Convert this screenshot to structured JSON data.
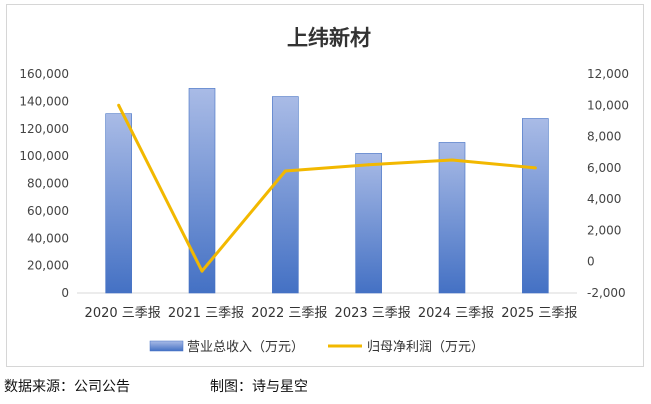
{
  "chart_data": {
    "type": "bar+line",
    "title": "上纬新材",
    "categories": [
      "2020 三季报",
      "2021 三季报",
      "2022 三季报",
      "2023 三季报",
      "2024 三季报",
      "2025 三季报"
    ],
    "series": [
      {
        "name": "营业总收入（万元）",
        "type": "bar",
        "axis": "left",
        "values": [
          131000,
          149500,
          143500,
          102000,
          110000,
          127500
        ]
      },
      {
        "name": "归母净利润（万元）",
        "type": "line",
        "axis": "right",
        "values": [
          10000,
          -600,
          5800,
          6200,
          6500,
          6000
        ]
      }
    ],
    "y_left": {
      "ylim": [
        0,
        160000
      ],
      "ticks": [
        "0",
        "20,000",
        "40,000",
        "60,000",
        "80,000",
        "100,000",
        "120,000",
        "140,000",
        "160,000"
      ]
    },
    "y_right": {
      "ylim": [
        -2000,
        12000
      ],
      "ticks": [
        "-2,000",
        "0",
        "2,000",
        "4,000",
        "6,000",
        "8,000",
        "10,000",
        "12,000"
      ]
    },
    "legend_position": "bottom",
    "grid": false,
    "colors": {
      "bar_top": "#a9bbe6",
      "bar_bottom": "#4471c4",
      "line": "#f2b800"
    }
  },
  "footer": {
    "source": "数据来源：公司公告",
    "author": "制图：诗与星空"
  }
}
